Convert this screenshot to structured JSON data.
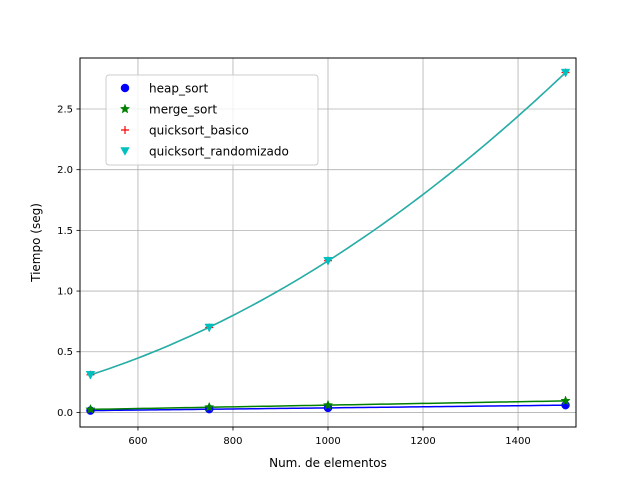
{
  "chart_data": {
    "type": "line",
    "xlabel": "Num. de elementos",
    "ylabel": "Tiempo (seg)",
    "xlim": [
      478,
      1522
    ],
    "ylim": [
      -0.12,
      2.92
    ],
    "xticks": [
      600,
      800,
      1000,
      1200,
      1400
    ],
    "yticks": [
      0.0,
      0.5,
      1.0,
      1.5,
      2.0,
      2.5
    ],
    "x_tick_labels": [
      "600",
      "800",
      "1000",
      "1200",
      "1400"
    ],
    "y_tick_labels": [
      "0.0",
      "0.5",
      "1.0",
      "1.5",
      "2.0",
      "2.5"
    ],
    "grid": true,
    "legend_position": "upper-left",
    "series": [
      {
        "name": "heap_sort",
        "marker": "circle",
        "color": "#0000ff",
        "x": [
          500,
          750,
          1000,
          1500
        ],
        "y": [
          0.015,
          0.027,
          0.037,
          0.06
        ]
      },
      {
        "name": "merge_sort",
        "marker": "star",
        "color": "#008000",
        "x": [
          500,
          750,
          1000,
          1500
        ],
        "y": [
          0.025,
          0.043,
          0.06,
          0.095
        ]
      },
      {
        "name": "quicksort_basico",
        "marker": "plus",
        "color": "#ff0000",
        "x": [
          500,
          750,
          1000,
          1500
        ],
        "y": [
          0.31,
          0.7,
          1.25,
          2.8
        ]
      },
      {
        "name": "quicksort_randomizado",
        "marker": "triangle-down",
        "color": "#00bfbf",
        "x": [
          500,
          750,
          1000,
          1500
        ],
        "y": [
          0.31,
          0.7,
          1.25,
          2.8
        ]
      }
    ],
    "fit_curves": [
      {
        "color": "#0000ff",
        "series_ref": "heap_sort"
      },
      {
        "color": "#008000",
        "series_ref": "merge_sort"
      },
      {
        "color": "#808080",
        "series_ref": "quicksort_basico"
      },
      {
        "color": "#20b2aa",
        "series_ref": "quicksort_randomizado"
      }
    ]
  }
}
